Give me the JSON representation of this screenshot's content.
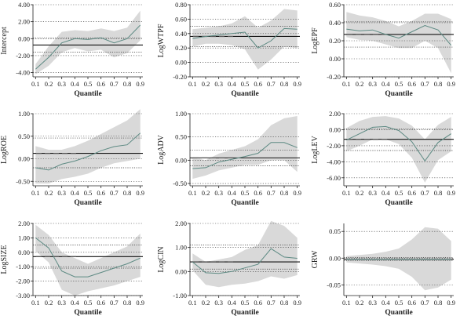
{
  "figure": {
    "colors": {
      "band": "#d9d9d9",
      "quantile_line": "#5d8a83",
      "ols_line": "#111111",
      "dashed_line": "#555555",
      "dotted_line": "#333333"
    }
  },
  "chart_data": [
    {
      "type": "line",
      "ylabel": "Intercept",
      "xlabel": "Quantile",
      "x": [
        0.1,
        0.2,
        0.3,
        0.4,
        0.5,
        0.6,
        0.7,
        0.8,
        0.9
      ],
      "x_ticks": [
        "0.1",
        "0.2",
        "0.3",
        "0.4",
        "0.5",
        "0.6",
        "0.7",
        "0.8",
        "0.9"
      ],
      "ylim": [
        -4.5,
        4.0
      ],
      "y_ticks": [
        {
          "v": 4,
          "label": "4.00"
        },
        {
          "v": 2,
          "label": "2.00"
        },
        {
          "v": 0,
          "label": "0.00"
        },
        {
          "v": -2,
          "label": "-2.00"
        },
        {
          "v": -4,
          "label": "-4.00"
        }
      ],
      "series": [
        {
          "values": [
            -3.6,
            -2.2,
            -0.5,
            0.0,
            -0.1,
            0.1,
            -0.5,
            0.0,
            1.6
          ]
        },
        {
          "values": [
            -4.2,
            -3.2,
            -1.6,
            -1.1,
            -1.5,
            -1.3,
            -2.2,
            -1.7,
            -0.2
          ]
        },
        {
          "values": [
            -3.0,
            -0.9,
            0.8,
            1.0,
            0.9,
            1.2,
            0.9,
            1.3,
            3.3
          ]
        }
      ],
      "ols": -0.75,
      "ols_ci": [
        -1.6,
        0.1
      ],
      "dashed": null,
      "grid": "dotted"
    },
    {
      "type": "line",
      "ylabel": "LogWTPF",
      "xlabel": "Quantile",
      "x": [
        0.1,
        0.2,
        0.3,
        0.4,
        0.5,
        0.6,
        0.7,
        0.8,
        0.9
      ],
      "x_ticks": [
        "0.1",
        "0.2",
        "0.3",
        "0.4",
        "0.5",
        "0.6",
        "0.7",
        "0.8",
        "0.9"
      ],
      "ylim": [
        -0.2,
        0.8
      ],
      "y_ticks": [
        {
          "v": 0.8,
          "label": "0.80"
        },
        {
          "v": 0.6,
          "label": "0.60"
        },
        {
          "v": 0.4,
          "label": "0.40"
        },
        {
          "v": 0.2,
          "label": "0.20"
        },
        {
          "v": 0.0,
          "label": "0.00"
        },
        {
          "v": -0.2,
          "label": "-0.20"
        }
      ],
      "series": [
        {
          "values": [
            0.33,
            0.36,
            0.38,
            0.4,
            0.42,
            0.2,
            0.3,
            0.47,
            0.46
          ]
        },
        {
          "values": [
            0.22,
            0.26,
            0.26,
            0.24,
            0.18,
            -0.1,
            0.04,
            0.22,
            0.2
          ]
        },
        {
          "values": [
            0.46,
            0.48,
            0.5,
            0.54,
            0.64,
            0.48,
            0.58,
            0.74,
            0.72
          ]
        }
      ],
      "ols": 0.36,
      "ols_ci": [
        0.22,
        0.5
      ],
      "dashed": 0.36,
      "grid": "dotted"
    },
    {
      "type": "line",
      "ylabel": "LogEPF",
      "xlabel": "Quantile",
      "x": [
        0.1,
        0.2,
        0.3,
        0.4,
        0.5,
        0.6,
        0.7,
        0.8,
        0.9
      ],
      "x_ticks": [
        "0.1",
        "0.2",
        "0.3",
        "0.4",
        "0.5",
        "0.6",
        "0.7",
        "0.8",
        "0.9"
      ],
      "ylim": [
        -0.2,
        0.6
      ],
      "y_ticks": [
        {
          "v": 0.6,
          "label": "0.60"
        },
        {
          "v": 0.4,
          "label": "0.40"
        },
        {
          "v": 0.2,
          "label": "0.20"
        },
        {
          "v": 0.0,
          "label": "0.00"
        },
        {
          "v": -0.2,
          "label": "-0.20"
        }
      ],
      "series": [
        {
          "values": [
            0.33,
            0.31,
            0.32,
            0.27,
            0.23,
            0.3,
            0.37,
            0.32,
            0.15
          ]
        },
        {
          "values": [
            0.24,
            0.21,
            0.2,
            0.16,
            0.12,
            0.12,
            0.2,
            0.12,
            -0.16
          ]
        },
        {
          "values": [
            0.52,
            0.48,
            0.46,
            0.42,
            0.36,
            0.42,
            0.5,
            0.5,
            0.44
          ]
        }
      ],
      "ols": 0.27,
      "ols_ci": [
        0.13,
        0.41
      ],
      "dashed": 0.27,
      "grid": "dotted"
    },
    {
      "type": "line",
      "ylabel": "LogROE",
      "xlabel": "Quantile",
      "x": [
        0.1,
        0.2,
        0.3,
        0.4,
        0.5,
        0.6,
        0.7,
        0.8,
        0.9
      ],
      "x_ticks": [
        "0.1",
        "0.2",
        "0.3",
        "0.4",
        "0.5",
        "0.6",
        "0.7",
        "0.8",
        "0.9"
      ],
      "ylim": [
        -0.6,
        1.0
      ],
      "y_ticks": [
        {
          "v": 1.0,
          "label": "1.00"
        },
        {
          "v": 0.5,
          "label": "0.50"
        },
        {
          "v": 0.0,
          "label": "0.00"
        },
        {
          "v": -0.5,
          "label": "-0.50"
        }
      ],
      "series": [
        {
          "values": [
            -0.2,
            -0.25,
            -0.12,
            -0.05,
            0.05,
            0.18,
            0.27,
            0.31,
            0.57
          ]
        },
        {
          "values": [
            -0.55,
            -0.55,
            -0.45,
            -0.4,
            -0.33,
            -0.2,
            -0.1,
            -0.05,
            0.0
          ]
        },
        {
          "values": [
            0.28,
            0.2,
            0.2,
            0.28,
            0.4,
            0.55,
            0.7,
            0.85,
            1.1
          ]
        }
      ],
      "ols": 0.12,
      "ols_ci": [
        -0.2,
        0.46
      ],
      "dashed": 0.12,
      "grid": "dotted"
    },
    {
      "type": "line",
      "ylabel": "LogADV",
      "xlabel": "Quantile",
      "x": [
        0.1,
        0.2,
        0.3,
        0.4,
        0.5,
        0.6,
        0.7,
        0.8,
        0.9
      ],
      "x_ticks": [
        "0.1",
        "0.2",
        "0.3",
        "0.4",
        "0.5",
        "0.6",
        "0.7",
        "0.8",
        "0.9"
      ],
      "ylim": [
        -0.55,
        1.0
      ],
      "y_ticks": [
        {
          "v": 1.0,
          "label": "1.00"
        },
        {
          "v": 0.5,
          "label": "0.50"
        },
        {
          "v": 0.0,
          "label": "0.00"
        },
        {
          "v": -0.5,
          "label": "-0.50"
        }
      ],
      "series": [
        {
          "values": [
            -0.18,
            -0.16,
            -0.04,
            0.02,
            0.08,
            0.15,
            0.38,
            0.38,
            0.27
          ]
        },
        {
          "values": [
            -0.4,
            -0.33,
            -0.22,
            -0.16,
            -0.1,
            -0.1,
            0.0,
            0.0,
            -0.25
          ]
        },
        {
          "values": [
            0.06,
            0.0,
            0.14,
            0.22,
            0.3,
            0.45,
            0.75,
            0.9,
            0.95
          ]
        }
      ],
      "ols": 0.05,
      "ols_ci": [
        -0.12,
        0.22
      ],
      "dashed": 0.05,
      "grid": "dotted"
    },
    {
      "type": "line",
      "ylabel": "LogLEV",
      "xlabel": "Quantile",
      "x": [
        0.1,
        0.2,
        0.3,
        0.4,
        0.5,
        0.6,
        0.7,
        0.8,
        0.9
      ],
      "x_ticks": [
        "0.1",
        "0.2",
        "0.3",
        "0.4",
        "0.5",
        "0.6",
        "0.7",
        "0.8",
        "0.9"
      ],
      "ylim": [
        -7.0,
        2.0
      ],
      "y_ticks": [
        {
          "v": 2,
          "label": "2.00"
        },
        {
          "v": 0,
          "label": "0.00"
        },
        {
          "v": -2,
          "label": "-2.00"
        },
        {
          "v": -4,
          "label": "-4.00"
        },
        {
          "v": -6,
          "label": "-6.00"
        }
      ],
      "series": [
        {
          "values": [
            -1.3,
            -0.5,
            0.3,
            0.4,
            -0.1,
            -1.5,
            -3.9,
            -1.6,
            -0.5
          ]
        },
        {
          "values": [
            -2.7,
            -2.0,
            -1.2,
            -1.2,
            -1.8,
            -3.5,
            -6.6,
            -3.8,
            -2.7
          ]
        },
        {
          "values": [
            0.2,
            1.1,
            1.6,
            1.7,
            1.4,
            0.5,
            -1.2,
            0.6,
            1.6
          ]
        }
      ],
      "ols": -1.2,
      "ols_ci": [
        -2.6,
        0.1
      ],
      "dashed": -1.2,
      "grid": "dotted"
    },
    {
      "type": "line",
      "ylabel": "LogSIZE",
      "xlabel": "Quantile",
      "x": [
        0.1,
        0.2,
        0.3,
        0.4,
        0.5,
        0.6,
        0.7,
        0.8,
        0.9
      ],
      "x_ticks": [
        "0.1",
        "0.2",
        "0.3",
        "0.4",
        "0.5",
        "0.6",
        "0.7",
        "0.8",
        "0.9"
      ],
      "ylim": [
        -3.0,
        2.0
      ],
      "y_ticks": [
        {
          "v": 2,
          "label": "2.00"
        },
        {
          "v": 1,
          "label": "1.00"
        },
        {
          "v": 0,
          "label": "0.00"
        },
        {
          "v": -1,
          "label": "-1.00"
        },
        {
          "v": -2,
          "label": "-2.00"
        },
        {
          "v": -3,
          "label": "-3.00"
        }
      ],
      "series": [
        {
          "values": [
            1.0,
            0.3,
            -1.3,
            -1.7,
            -1.7,
            -1.4,
            -1.1,
            -0.8,
            -0.4
          ]
        },
        {
          "values": [
            0.1,
            -0.7,
            -2.6,
            -3.0,
            -2.7,
            -2.5,
            -2.3,
            -2.0,
            -1.7
          ]
        },
        {
          "values": [
            1.9,
            1.2,
            0.0,
            -0.4,
            -0.8,
            -0.4,
            0.0,
            0.4,
            1.3
          ]
        }
      ],
      "ols": -0.3,
      "ols_ci": [
        -1.1,
        0.5
      ],
      "dashed": -0.3,
      "grid": "dotted"
    },
    {
      "type": "line",
      "ylabel": "LogCIN",
      "xlabel": "Quantile",
      "x": [
        0.1,
        0.2,
        0.3,
        0.4,
        0.5,
        0.6,
        0.7,
        0.8,
        0.9
      ],
      "x_ticks": [
        "0.1",
        "0.2",
        "0.3",
        "0.4",
        "0.5",
        "0.6",
        "0.7",
        "0.8",
        "0.9"
      ],
      "ylim": [
        -1.0,
        2.0
      ],
      "y_ticks": [
        {
          "v": 2,
          "label": "2.00"
        },
        {
          "v": 1,
          "label": "1.00"
        },
        {
          "v": 0,
          "label": "0.00"
        },
        {
          "v": -1,
          "label": "-1.00"
        }
      ],
      "series": [
        {
          "values": [
            0.4,
            -0.05,
            -0.08,
            0.0,
            0.15,
            0.3,
            0.95,
            0.6,
            0.55
          ]
        },
        {
          "values": [
            0.05,
            -0.55,
            -0.65,
            -0.55,
            -0.5,
            -0.4,
            -0.2,
            -0.3,
            -0.15
          ]
        },
        {
          "values": [
            0.75,
            0.4,
            0.5,
            0.6,
            0.9,
            1.1,
            2.1,
            1.9,
            1.4
          ]
        }
      ],
      "ols": 0.4,
      "ols_ci": [
        0.1,
        1.1
      ],
      "dashed": 0.4,
      "grid": "dotted"
    },
    {
      "type": "line",
      "ylabel": "GRW",
      "xlabel": "Quantile",
      "x": [
        0.1,
        0.2,
        0.3,
        0.4,
        0.5,
        0.6,
        0.7,
        0.8,
        0.9
      ],
      "x_ticks": [
        "0.1",
        "0.2",
        "0.3",
        "0.4",
        "0.5",
        "0.6",
        "0.7",
        "0.8",
        "0.9"
      ],
      "ylim": [
        -0.07,
        0.065
      ],
      "y_ticks": [
        {
          "v": 0.05,
          "label": "0.05"
        },
        {
          "v": 0.0,
          "label": "0.00"
        },
        {
          "v": -0.05,
          "label": "-0.05"
        }
      ],
      "series": [
        {
          "values": [
            -0.002,
            -0.002,
            -0.002,
            -0.002,
            -0.002,
            -0.002,
            -0.002,
            -0.002,
            -0.002
          ]
        },
        {
          "values": [
            -0.008,
            -0.01,
            -0.012,
            -0.015,
            -0.02,
            -0.035,
            -0.06,
            -0.055,
            -0.04
          ]
        },
        {
          "values": [
            0.004,
            0.006,
            0.008,
            0.012,
            0.018,
            0.035,
            0.058,
            0.055,
            0.032
          ]
        }
      ],
      "ols": -0.002,
      "ols_ci": [
        -0.005,
        0.001
      ],
      "dashed": -0.002,
      "grid": "dotted"
    }
  ]
}
